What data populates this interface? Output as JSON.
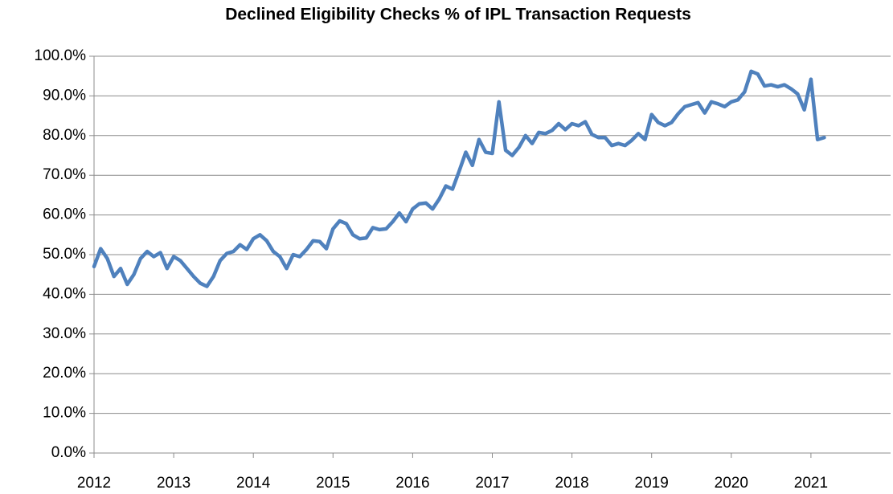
{
  "chart_data": {
    "type": "line",
    "title": "Declined Eligibility Checks % of IPL Transaction Requests",
    "color": "#4f81bd",
    "grid": true,
    "xlim": [
      2012,
      2022
    ],
    "xticks": [
      2012,
      2013,
      2014,
      2015,
      2016,
      2017,
      2018,
      2019,
      2020,
      2021
    ],
    "ylim": [
      0,
      100
    ],
    "yticks": [
      {
        "value": 0,
        "label": "0.0%"
      },
      {
        "value": 10,
        "label": "10.0%"
      },
      {
        "value": 20,
        "label": "20.0%"
      },
      {
        "value": 30,
        "label": "30.0%"
      },
      {
        "value": 40,
        "label": "40.0%"
      },
      {
        "value": 50,
        "label": "50.0%"
      },
      {
        "value": 60,
        "label": "60.0%"
      },
      {
        "value": 70,
        "label": "70.0%"
      },
      {
        "value": 80,
        "label": "80.0%"
      },
      {
        "value": 90,
        "label": "90.0%"
      },
      {
        "value": 100,
        "label": "100.0%"
      }
    ],
    "x": [
      2012,
      2012.083,
      2012.167,
      2012.25,
      2012.333,
      2012.417,
      2012.5,
      2012.583,
      2012.667,
      2012.75,
      2012.833,
      2012.917,
      2013,
      2013.083,
      2013.167,
      2013.25,
      2013.333,
      2013.417,
      2013.5,
      2013.583,
      2013.667,
      2013.75,
      2013.833,
      2013.917,
      2014,
      2014.083,
      2014.167,
      2014.25,
      2014.333,
      2014.417,
      2014.5,
      2014.583,
      2014.667,
      2014.75,
      2014.833,
      2014.917,
      2015,
      2015.083,
      2015.167,
      2015.25,
      2015.333,
      2015.417,
      2015.5,
      2015.583,
      2015.667,
      2015.75,
      2015.833,
      2015.917,
      2016,
      2016.083,
      2016.167,
      2016.25,
      2016.333,
      2016.417,
      2016.5,
      2016.583,
      2016.667,
      2016.75,
      2016.833,
      2016.917,
      2017,
      2017.083,
      2017.167,
      2017.25,
      2017.333,
      2017.417,
      2017.5,
      2017.583,
      2017.667,
      2017.75,
      2017.833,
      2017.917,
      2018,
      2018.083,
      2018.167,
      2018.25,
      2018.333,
      2018.417,
      2018.5,
      2018.583,
      2018.667,
      2018.75,
      2018.833,
      2018.917,
      2019,
      2019.083,
      2019.167,
      2019.25,
      2019.333,
      2019.417,
      2019.5,
      2019.583,
      2019.667,
      2019.75,
      2019.833,
      2019.917,
      2020,
      2020.083,
      2020.167,
      2020.25,
      2020.333,
      2020.417,
      2020.5,
      2020.583,
      2020.667,
      2020.75,
      2020.833,
      2020.917,
      2021,
      2021.083,
      2021.167
    ],
    "values": [
      47,
      51.5,
      49,
      44.5,
      46.5,
      42.5,
      45,
      49,
      50.8,
      49.5,
      50.5,
      46.5,
      49.5,
      48.5,
      46.5,
      44.5,
      42.8,
      42,
      44.5,
      48.5,
      50.3,
      50.8,
      52.5,
      51.3,
      54,
      55,
      53.5,
      50.8,
      49.5,
      46.5,
      50,
      49.5,
      51.3,
      53.5,
      53.3,
      51.5,
      56.5,
      58.5,
      57.8,
      55,
      54,
      54.2,
      56.8,
      56.3,
      56.5,
      58.3,
      60.5,
      58.3,
      61.5,
      62.8,
      63,
      61.5,
      64,
      67.3,
      66.5,
      71,
      75.8,
      72.5,
      79,
      75.8,
      75.5,
      88.5,
      76.3,
      75,
      77,
      80,
      78,
      80.8,
      80.5,
      81.3,
      83,
      81.5,
      83,
      82.5,
      83.5,
      80.3,
      79.5,
      79.5,
      77.5,
      78,
      77.5,
      78.8,
      80.5,
      79,
      85.3,
      83.3,
      82.5,
      83.3,
      85.5,
      87.3,
      87.8,
      88.3,
      85.7,
      88.5,
      88,
      87.3,
      88.5,
      89,
      91,
      96.2,
      95.5,
      92.5,
      92.8,
      92.3,
      92.8,
      91.8,
      90.5,
      86.5,
      94.2,
      79,
      79.5
    ]
  }
}
